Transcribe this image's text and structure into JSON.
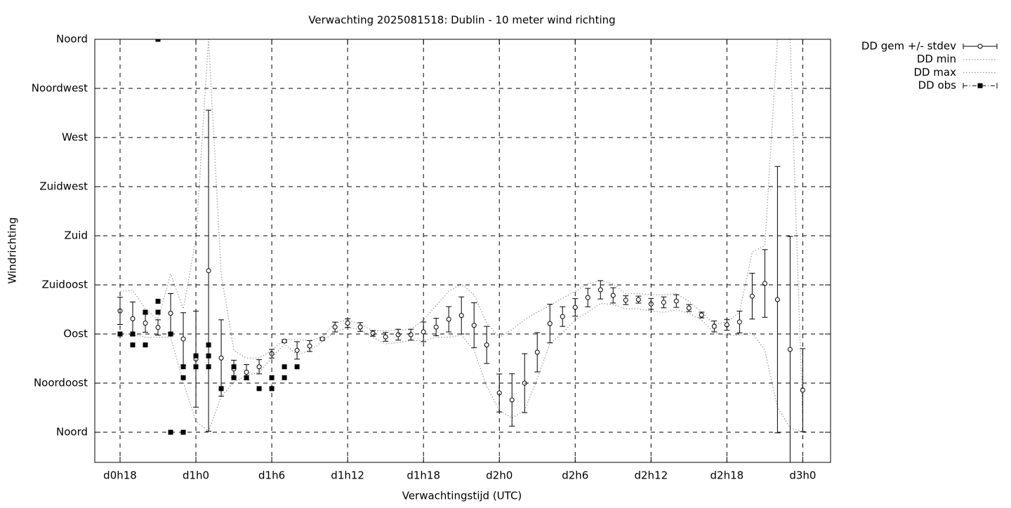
{
  "chart_data": {
    "type": "errorbar",
    "title": "Verwachting 2025081518: Dublin - 10 meter wind richting",
    "xlabel": "Verwachtingstijd (UTC)",
    "ylabel": "Windrichting",
    "xlim": [
      16,
      74.2
    ],
    "ylim": [
      -27.6,
      360
    ],
    "xticks": [
      {
        "value": 18,
        "label": "d0h18"
      },
      {
        "value": 24,
        "label": "d1h0"
      },
      {
        "value": 30,
        "label": "d1h6"
      },
      {
        "value": 36,
        "label": "d1h12"
      },
      {
        "value": 42,
        "label": "d1h18"
      },
      {
        "value": 48,
        "label": "d2h0"
      },
      {
        "value": 54,
        "label": "d2h6"
      },
      {
        "value": 60,
        "label": "d2h12"
      },
      {
        "value": 66,
        "label": "d2h18"
      },
      {
        "value": 72,
        "label": "d3h0"
      }
    ],
    "yticks": [
      {
        "value": 0,
        "label": "Noord"
      },
      {
        "value": 45,
        "label": "Noordoost"
      },
      {
        "value": 90,
        "label": "Oost"
      },
      {
        "value": 135,
        "label": "Zuidoost"
      },
      {
        "value": 180,
        "label": "Zuid"
      },
      {
        "value": 225,
        "label": "Zuidwest"
      },
      {
        "value": 270,
        "label": "West"
      },
      {
        "value": 315,
        "label": "Noordwest"
      },
      {
        "value": 360,
        "label": "Noord"
      }
    ],
    "grid": true,
    "legend": "outside-right",
    "x": [
      18,
      19,
      20,
      21,
      22,
      23,
      24,
      25,
      26,
      27,
      28,
      29,
      30,
      31,
      32,
      33,
      34,
      35,
      36,
      37,
      38,
      39,
      40,
      41,
      42,
      43,
      44,
      45,
      46,
      47,
      48,
      49,
      50,
      51,
      52,
      53,
      54,
      55,
      56,
      57,
      58,
      59,
      60,
      61,
      62,
      63,
      64,
      65,
      66,
      67,
      68,
      69,
      70,
      71,
      72
    ],
    "series": [
      {
        "name": "DD gem +/- stdev",
        "style": "errorbar",
        "color": "#000000",
        "values": [
          111.2,
          104,
          100,
          96,
          109,
          85.5,
          67,
          148,
          68,
          58,
          55,
          60,
          72,
          83.5,
          75,
          79,
          85.5,
          96.4,
          100,
          96.4,
          90.6,
          87.4,
          89.4,
          89.4,
          92,
          96.4,
          103.5,
          107,
          98,
          80,
          36,
          29.6,
          45,
          73.3,
          99.6,
          106,
          114.4,
          123.4,
          130.5,
          125.4,
          121,
          121.5,
          117.6,
          119,
          120.2,
          113.8,
          107.4,
          97,
          98.4,
          101,
          124.7,
          136.3,
          121.5,
          75.9,
          38.6
        ],
        "errors": [
          12.5,
          15.4,
          8.4,
          7,
          18,
          24,
          44,
          147,
          35,
          8,
          7,
          6.5,
          4,
          1.3,
          8,
          5,
          1.3,
          4.5,
          4,
          4,
          2.6,
          4,
          5,
          5,
          9,
          8,
          11.6,
          17,
          20.6,
          17,
          17.4,
          24,
          27,
          18,
          17.7,
          9,
          8,
          8.4,
          8.4,
          7,
          4,
          3.2,
          5,
          5,
          5.8,
          3.2,
          2.6,
          5,
          5,
          10,
          21,
          31,
          122,
          103.5,
          38
        ]
      },
      {
        "name": "DD min",
        "style": "dotted",
        "color": "#999999",
        "values": [
          90,
          90,
          87,
          87,
          87,
          46,
          10,
          1,
          33,
          46,
          52,
          55,
          68,
          81,
          71,
          75,
          83,
          92,
          96,
          94,
          87,
          81,
          82,
          84,
          84,
          87,
          87,
          89,
          75,
          42,
          20,
          13,
          20,
          49,
          81,
          91,
          103,
          110,
          118,
          117,
          113,
          113,
          111,
          110,
          112,
          109,
          103,
          91,
          89,
          89,
          91,
          75,
          23,
          4,
          0
        ]
      },
      {
        "name": "DD max",
        "style": "dotted",
        "color": "#999999",
        "values": [
          129,
          130,
          113,
          103,
          145,
          113,
          177,
          360,
          145,
          75,
          68,
          68,
          75,
          85,
          85,
          84,
          87,
          100,
          103,
          99,
          93,
          93,
          94,
          94,
          103,
          116,
          129,
          136,
          126,
          100,
          87,
          94,
          103,
          110,
          116,
          123,
          129,
          136,
          139,
          136,
          127,
          127,
          126,
          126,
          127,
          120,
          110,
          99,
          101,
          110,
          165,
          171,
          360,
          360,
          10
        ]
      },
      {
        "name": "DD obs",
        "style": "points",
        "color": "#000000",
        "x": [
          18,
          19,
          19,
          20,
          20,
          21,
          21,
          21,
          22,
          22,
          23,
          23,
          23,
          24,
          24,
          25,
          25,
          25,
          26,
          27,
          27,
          28,
          29,
          30,
          30,
          31,
          31,
          32
        ],
        "values": [
          90,
          90,
          80,
          110,
          80,
          360,
          120,
          110,
          90,
          0,
          60,
          50,
          0,
          70,
          60,
          80,
          70,
          60,
          40,
          60,
          50,
          50,
          40,
          50,
          40,
          60,
          50,
          60
        ]
      }
    ]
  }
}
